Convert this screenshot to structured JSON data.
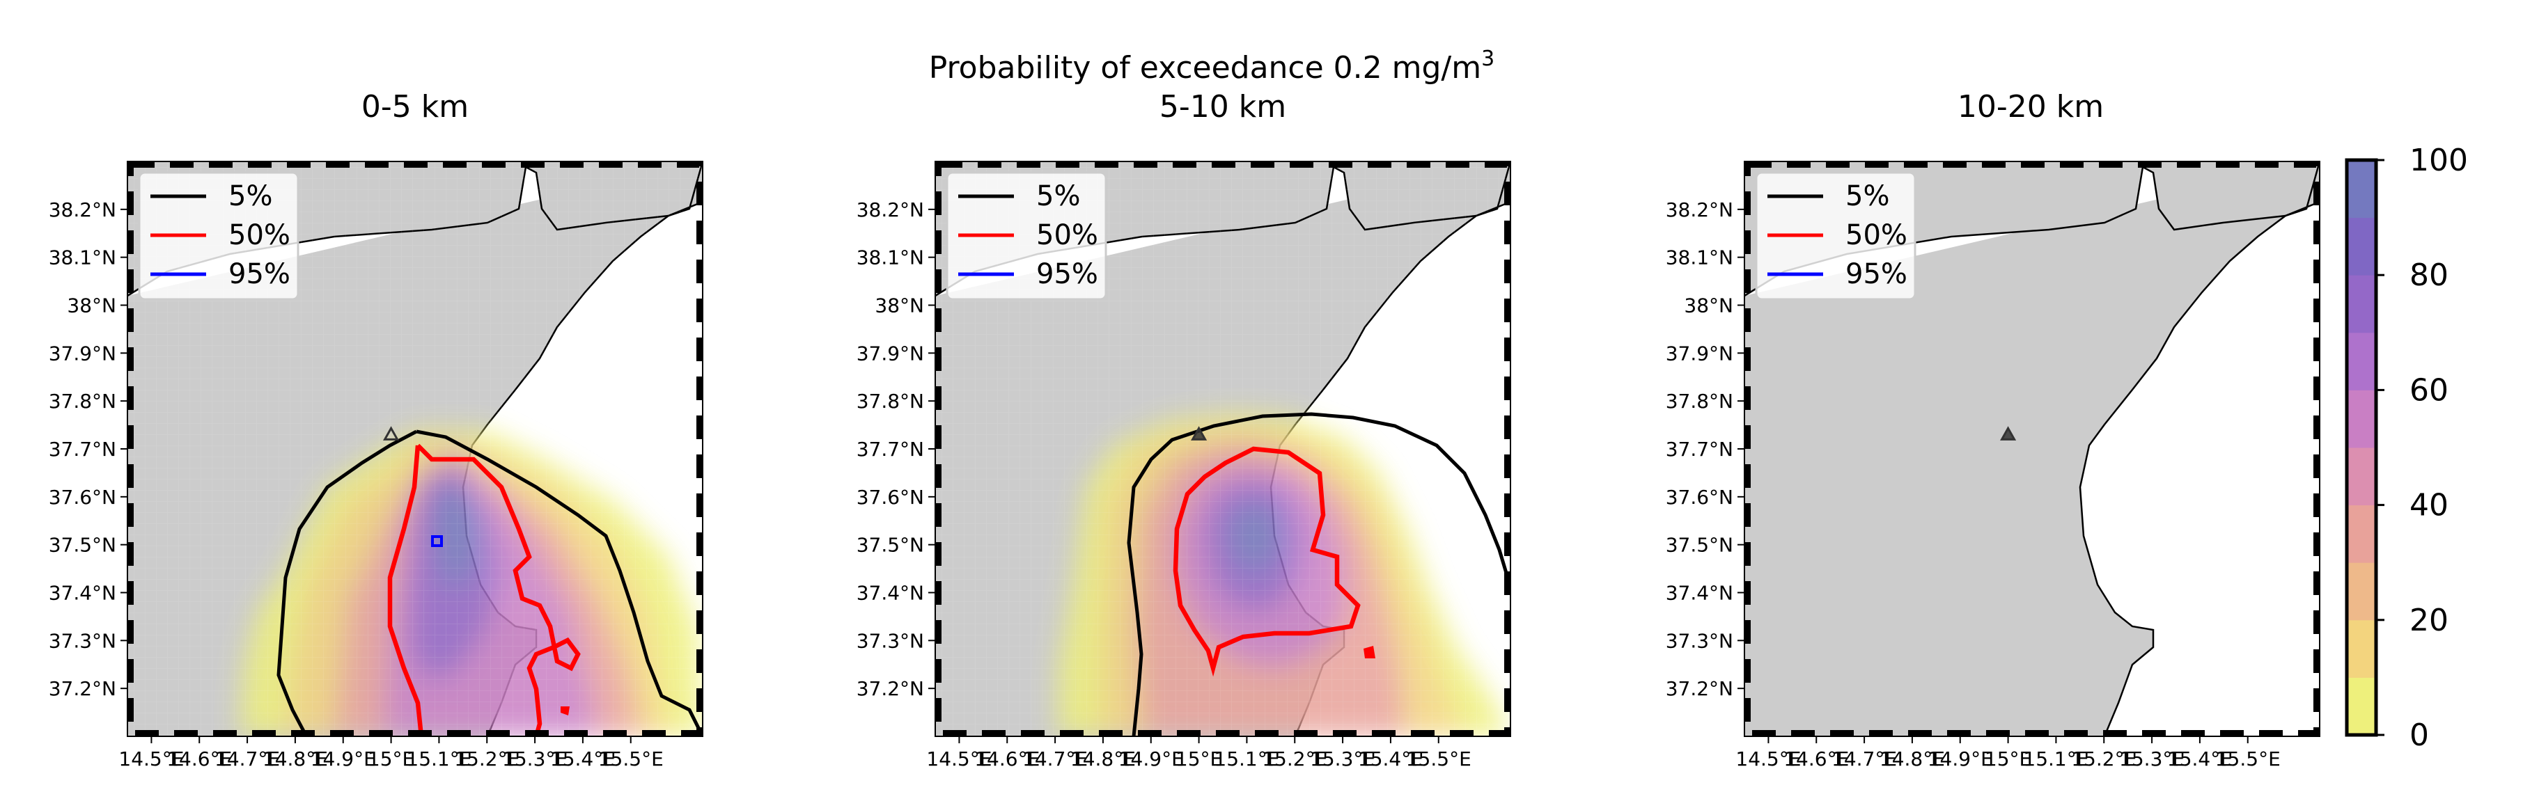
{
  "figure": {
    "suptitle_main": "Probability of exceedance 0.2 mg/m",
    "suptitle_sup": "3"
  },
  "panels": [
    {
      "title": "0-5 km"
    },
    {
      "title": "5-10 km"
    },
    {
      "title": "10-20 km"
    }
  ],
  "legend": [
    {
      "label": "5%",
      "color": "#000000"
    },
    {
      "label": "50%",
      "color": "#ff0000"
    },
    {
      "label": "95%",
      "color": "#0000ff"
    }
  ],
  "axes": {
    "lon_ticks": [
      "14.5°E",
      "14.6°E",
      "14.7°E",
      "14.8°E",
      "14.9°E",
      "15°E",
      "15.1°E",
      "15.2°E",
      "15.3°E",
      "15.4°E",
      "15.5°E"
    ],
    "lat_ticks": [
      "38.2°N",
      "38.1°N",
      "38°N",
      "37.9°N",
      "37.8°N",
      "37.7°N",
      "37.6°N",
      "37.5°N",
      "37.4°N",
      "37.3°N",
      "37.2°N"
    ],
    "lon_values": [
      14.5,
      14.6,
      14.7,
      14.8,
      14.9,
      15.0,
      15.1,
      15.2,
      15.3,
      15.4,
      15.5
    ],
    "lat_values": [
      38.2,
      38.1,
      38.0,
      37.9,
      37.8,
      37.7,
      37.6,
      37.5,
      37.4,
      37.3,
      37.2
    ],
    "lon_range": [
      14.45,
      15.65
    ],
    "lat_range": [
      37.1,
      38.3
    ]
  },
  "volcano": {
    "lon": 15.0,
    "lat": 37.73,
    "icon": "triangle-icon"
  },
  "colorbar": {
    "ticks": [
      "0",
      "20",
      "40",
      "60",
      "80",
      "100"
    ],
    "values": [
      0,
      20,
      40,
      60,
      80,
      100
    ],
    "colors": [
      "#eef07c",
      "#f3d47e",
      "#eeb98a",
      "#e8a29a",
      "#dc8fb0",
      "#c97fc4",
      "#ae72cc",
      "#9468c8",
      "#7f67c4",
      "#7479bf"
    ]
  },
  "colors": {
    "land": "#cccccc",
    "coast": "#000000"
  }
}
